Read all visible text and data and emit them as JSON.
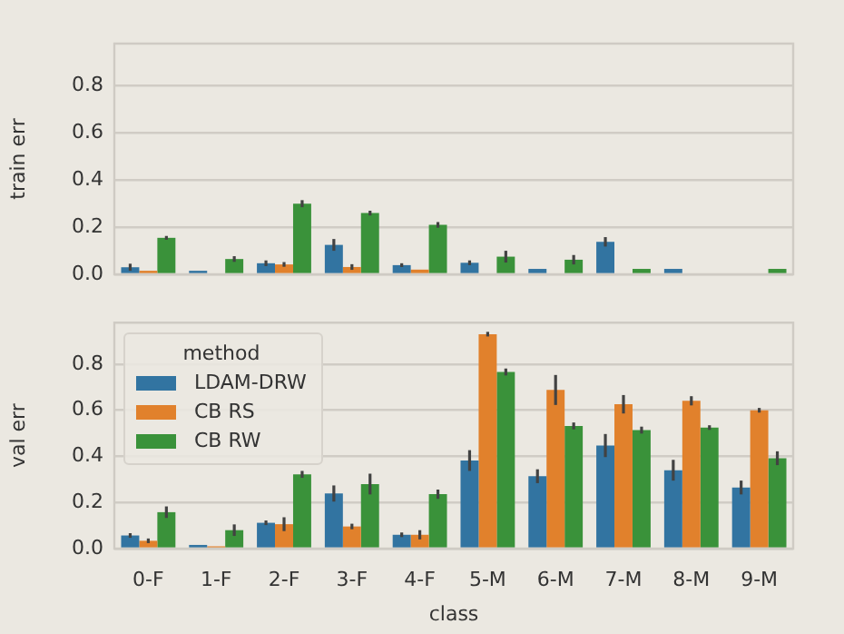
{
  "chart_data": [
    {
      "type": "bar",
      "ylabel": "train err",
      "categories": [
        null,
        null,
        null,
        null,
        null,
        null,
        null,
        null,
        null,
        null
      ],
      "ylim": [
        0,
        0.98
      ],
      "yticks": [
        {
          "value": 0,
          "label": "0.0"
        },
        {
          "value": 0.2,
          "label": "0.2"
        },
        {
          "value": 0.4,
          "label": "0.4"
        },
        {
          "value": 0.6,
          "label": "0.6"
        },
        {
          "value": 0.8,
          "label": "0.8"
        }
      ],
      "grid": "y",
      "legend": false,
      "tick_labels": "y",
      "series": [
        {
          "color": "#3274a1",
          "values": [
            0.03,
            0.015,
            0.047,
            0.125,
            0.039,
            0.049,
            0.023,
            0.138,
            0.023,
            0
          ],
          "errors": [
            0.015,
            null,
            0.012,
            0.025,
            0.008,
            0.01,
            null,
            0.02,
            null,
            null
          ]
        },
        {
          "color": "#e1812c",
          "values": [
            0.015,
            0,
            0.042,
            0.031,
            0.02,
            0,
            0,
            0,
            0,
            0
          ],
          "errors": [
            null,
            null,
            0.01,
            0.012,
            null,
            null,
            null,
            null,
            null,
            null
          ]
        },
        {
          "color": "#3a923a",
          "values": [
            0.155,
            0.065,
            0.3,
            0.26,
            0.21,
            0.075,
            0.062,
            0.023,
            0,
            0.023
          ],
          "errors": [
            0.008,
            0.012,
            0.015,
            0.01,
            0.012,
            0.025,
            0.02,
            null,
            null,
            null
          ]
        }
      ]
    },
    {
      "type": "bar",
      "ylabel": "val err",
      "xlabel": "class",
      "categories": [
        "0-F",
        "1-F",
        "2-F",
        "3-F",
        "4-F",
        "5-M",
        "6-M",
        "7-M",
        "8-M",
        "9-M"
      ],
      "ylim": [
        0,
        0.98
      ],
      "yticks": [
        {
          "value": 0,
          "label": "0.0"
        },
        {
          "value": 0.2,
          "label": "0.2"
        },
        {
          "value": 0.4,
          "label": "0.4"
        },
        {
          "value": 0.6,
          "label": "0.6"
        },
        {
          "value": 0.8,
          "label": "0.8"
        }
      ],
      "grid": "y",
      "legend": "top left",
      "legend_title": "method",
      "series": [
        {
          "name": "LDAM-DRW",
          "color": "#3274a1",
          "values": [
            0.057,
            0.016,
            0.112,
            0.239,
            0.06,
            0.382,
            0.314,
            0.447,
            0.34,
            0.265
          ],
          "errors": [
            0.01,
            null,
            0.01,
            0.035,
            0.01,
            0.045,
            0.03,
            0.05,
            0.045,
            0.03
          ]
        },
        {
          "name": "CB RS",
          "color": "#e1812c",
          "values": [
            0.034,
            0.01,
            0.106,
            0.096,
            0.06,
            0.93,
            0.688,
            0.626,
            0.641,
            0.6
          ],
          "errors": [
            0.01,
            null,
            0.03,
            0.012,
            0.02,
            0.01,
            0.065,
            0.04,
            0.02,
            0.01
          ]
        },
        {
          "name": "CB RW",
          "color": "#3a923a",
          "values": [
            0.158,
            0.08,
            0.322,
            0.28,
            0.236,
            0.766,
            0.532,
            0.514,
            0.525,
            0.392
          ],
          "errors": [
            0.025,
            0.025,
            0.015,
            0.045,
            0.02,
            0.015,
            0.015,
            0.015,
            0.01,
            0.03
          ]
        }
      ]
    }
  ]
}
